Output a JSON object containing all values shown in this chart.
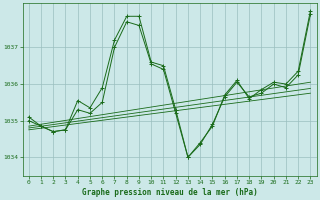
{
  "background_color": "#cce8e8",
  "grid_color": "#9bbfbf",
  "line_color": "#1a6b1a",
  "title": "Graphe pression niveau de la mer (hPa)",
  "xlim": [
    -0.5,
    23.5
  ],
  "ylim": [
    1033.5,
    1038.2
  ],
  "yticks": [
    1034,
    1035,
    1036,
    1037
  ],
  "xticks": [
    0,
    1,
    2,
    3,
    4,
    5,
    6,
    7,
    8,
    9,
    10,
    11,
    12,
    13,
    14,
    15,
    16,
    17,
    18,
    19,
    20,
    21,
    22,
    23
  ],
  "series1_x": [
    0,
    1,
    2,
    3,
    4,
    5,
    6,
    7,
    8,
    9,
    10,
    11,
    12,
    13,
    14,
    15,
    16,
    17,
    18,
    19,
    20,
    21,
    22,
    23
  ],
  "series1_y": [
    1035.0,
    1034.85,
    1034.7,
    1034.75,
    1035.55,
    1035.35,
    1035.9,
    1037.2,
    1037.85,
    1037.85,
    1036.6,
    1036.5,
    1035.3,
    1034.0,
    1034.4,
    1034.85,
    1035.7,
    1036.1,
    1035.6,
    1035.85,
    1036.05,
    1036.0,
    1036.35,
    1038.0
  ],
  "series2_x": [
    0,
    1,
    2,
    3,
    4,
    5,
    6,
    7,
    8,
    9,
    10,
    11,
    12,
    13,
    14,
    15,
    16,
    17,
    18,
    19,
    20,
    21,
    22,
    23
  ],
  "series2_y": [
    1035.1,
    1034.85,
    1034.7,
    1034.75,
    1035.3,
    1035.2,
    1035.5,
    1037.0,
    1037.7,
    1037.6,
    1036.55,
    1036.4,
    1035.2,
    1034.0,
    1034.35,
    1034.9,
    1035.65,
    1036.05,
    1035.65,
    1035.75,
    1036.0,
    1035.9,
    1036.25,
    1037.9
  ],
  "trend_lines": [
    {
      "x": [
        0,
        23
      ],
      "y": [
        1034.75,
        1035.75
      ]
    },
    {
      "x": [
        0,
        23
      ],
      "y": [
        1034.8,
        1035.88
      ]
    },
    {
      "x": [
        0,
        23
      ],
      "y": [
        1034.85,
        1036.05
      ]
    }
  ]
}
